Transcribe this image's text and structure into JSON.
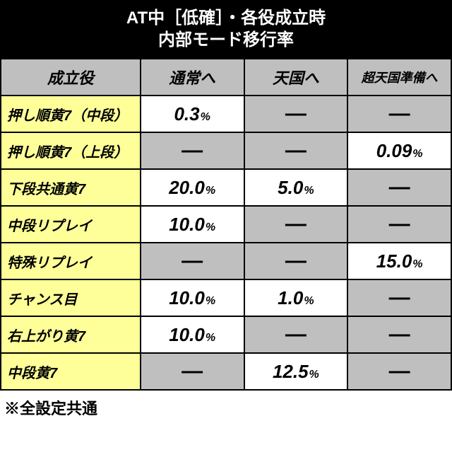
{
  "title": {
    "line1": "AT中［低確］・各役成立時",
    "line2": "内部モード移行率"
  },
  "columns": {
    "col0": "成立役",
    "col1": "通常へ",
    "col2": "天国へ",
    "col3": "超天国準備へ"
  },
  "rows": {
    "r0": {
      "label": "押し順黄7（中段）",
      "c1": "0.3",
      "c2": "—",
      "c3": "—",
      "bg1": "white",
      "bg2": "gray",
      "bg3": "gray"
    },
    "r1": {
      "label": "押し順黄7（上段）",
      "c1": "—",
      "c2": "—",
      "c3": "0.09",
      "bg1": "gray",
      "bg2": "gray",
      "bg3": "white"
    },
    "r2": {
      "label": "下段共通黄7",
      "c1": "20.0",
      "c2": "5.0",
      "c3": "—",
      "bg1": "white",
      "bg2": "white",
      "bg3": "gray"
    },
    "r3": {
      "label": "中段リプレイ",
      "c1": "10.0",
      "c2": "—",
      "c3": "—",
      "bg1": "white",
      "bg2": "gray",
      "bg3": "gray"
    },
    "r4": {
      "label": "特殊リプレイ",
      "c1": "—",
      "c2": "—",
      "c3": "15.0",
      "bg1": "gray",
      "bg2": "gray",
      "bg3": "white"
    },
    "r5": {
      "label": "チャンス目",
      "c1": "10.0",
      "c2": "1.0",
      "c3": "—",
      "bg1": "white",
      "bg2": "white",
      "bg3": "gray"
    },
    "r6": {
      "label": "右上がり黄7",
      "c1": "10.0",
      "c2": "—",
      "c3": "—",
      "bg1": "white",
      "bg2": "gray",
      "bg3": "gray"
    },
    "r7": {
      "label": "中段黄7",
      "c1": "—",
      "c2": "12.5",
      "c3": "—",
      "bg1": "gray",
      "bg2": "white",
      "bg3": "gray"
    }
  },
  "percent_suffix": "%",
  "footnote": "※全設定共通",
  "colors": {
    "header_bg": "#bfbfbf",
    "label_bg": "#ffff99",
    "white_bg": "#ffffff",
    "gray_bg": "#bfbfbf",
    "title_bg": "#000000",
    "title_fg": "#ffffff",
    "border": "#000000"
  },
  "font_sizes": {
    "title": 24,
    "header": 22,
    "header_small": 18,
    "row_label": 20,
    "value_num": 26,
    "value_pct": 16,
    "dash": 30,
    "footnote": 22
  }
}
